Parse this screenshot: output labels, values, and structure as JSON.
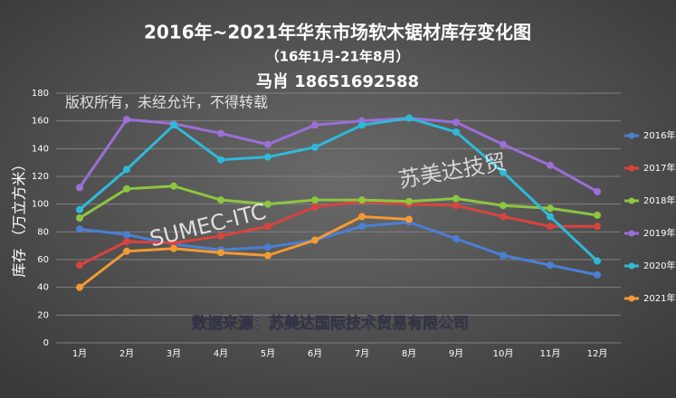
{
  "chart_data": {
    "type": "line",
    "title": "2016年~2021年华东市场软木锯材库存变化图",
    "subtitle": "（16年1月-21年8月）",
    "annotations": [
      "马肖  18651692588",
      "版权所有，未经允许，不得转载",
      "SUMEC-ITC",
      "苏美达技贸",
      "数据来源：苏美达国际技术贸易有限公司"
    ],
    "y_label": "库存 （万立方米）",
    "categories": [
      "1月",
      "2月",
      "3月",
      "4月",
      "5月",
      "6月",
      "7月",
      "8月",
      "9月",
      "10月",
      "11月",
      "12月"
    ],
    "series": [
      {
        "name": "2016年",
        "color": "#4a7fd4",
        "values": [
          82,
          78,
          71,
          67,
          69,
          74,
          84,
          87,
          75,
          63,
          56,
          49
        ]
      },
      {
        "name": "2017年",
        "color": "#d9433f",
        "values": [
          56,
          73,
          72,
          77,
          84,
          98,
          102,
          100,
          99,
          91,
          84,
          84
        ]
      },
      {
        "name": "2018年",
        "color": "#8dc63f",
        "values": [
          90,
          111,
          113,
          103,
          100,
          103,
          103,
          102,
          104,
          99,
          97,
          92
        ]
      },
      {
        "name": "2019年",
        "color": "#9b6fd6",
        "values": [
          112,
          161,
          158,
          151,
          143,
          157,
          160,
          162,
          159,
          143,
          128,
          109
        ]
      },
      {
        "name": "2020年",
        "color": "#2fb9d9",
        "values": [
          96,
          125,
          157,
          132,
          134,
          141,
          157,
          162,
          152,
          123,
          91,
          59
        ]
      },
      {
        "name": "2021年",
        "color": "#f39a33",
        "values": [
          40,
          66,
          68,
          65,
          63,
          74,
          91,
          89,
          null,
          null,
          null,
          null
        ]
      }
    ],
    "ylim": [
      0,
      180
    ],
    "yticks": [
      0,
      20,
      40,
      60,
      80,
      100,
      120,
      140,
      160,
      180
    ],
    "grid": true,
    "legend": "right"
  }
}
